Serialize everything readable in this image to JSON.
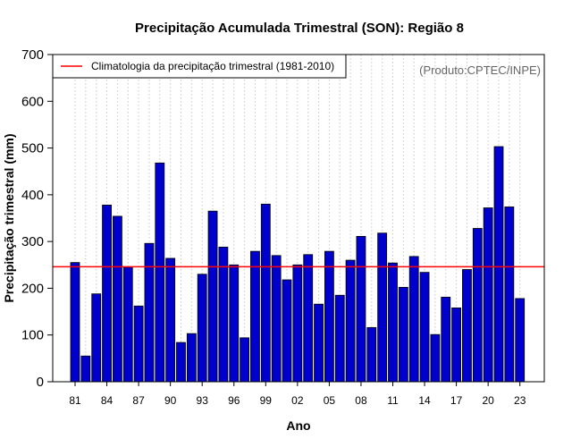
{
  "chart_data": {
    "type": "bar",
    "title": "Precipitação Acumulada Trimestral (SON): Região 8",
    "xlabel": "Ano",
    "ylabel": "Precipitação trimestral (mm)",
    "ylim": [
      0,
      700
    ],
    "yticks": [
      0,
      100,
      200,
      300,
      400,
      500,
      600,
      700
    ],
    "grid": "vertical dotted",
    "years": [
      1981,
      1982,
      1983,
      1984,
      1985,
      1986,
      1987,
      1988,
      1989,
      1990,
      1991,
      1992,
      1993,
      1994,
      1995,
      1996,
      1997,
      1998,
      1999,
      2000,
      2001,
      2002,
      2003,
      2004,
      2005,
      2006,
      2007,
      2008,
      2009,
      2010,
      2011,
      2012,
      2013,
      2014,
      2015,
      2016,
      2017,
      2018,
      2019,
      2020,
      2021,
      2022,
      2023
    ],
    "xtick_labels": [
      {
        "index": 0,
        "label": "81"
      },
      {
        "index": 3,
        "label": "84"
      },
      {
        "index": 6,
        "label": "87"
      },
      {
        "index": 9,
        "label": "90"
      },
      {
        "index": 12,
        "label": "93"
      },
      {
        "index": 15,
        "label": "96"
      },
      {
        "index": 18,
        "label": "99"
      },
      {
        "index": 21,
        "label": "02"
      },
      {
        "index": 24,
        "label": "05"
      },
      {
        "index": 27,
        "label": "08"
      },
      {
        "index": 30,
        "label": "11"
      },
      {
        "index": 33,
        "label": "14"
      },
      {
        "index": 36,
        "label": "17"
      },
      {
        "index": 39,
        "label": "20"
      },
      {
        "index": 42,
        "label": "23"
      }
    ],
    "values": [
      255,
      55,
      188,
      378,
      354,
      245,
      162,
      296,
      468,
      264,
      84,
      103,
      230,
      365,
      288,
      250,
      94,
      279,
      380,
      270,
      218,
      250,
      272,
      166,
      279,
      185,
      260,
      311,
      116,
      318,
      254,
      202,
      268,
      234,
      101,
      181,
      158,
      240,
      328,
      372,
      503,
      374,
      178
    ],
    "bar_color": "#0000cd",
    "climatology": {
      "value": 246,
      "color": "#ff0000",
      "label": "Climatologia da precipitação trimestral (1981-2010)"
    },
    "legend_position": "top-left",
    "credit": "(Produto:CPTEC/INPE)"
  }
}
